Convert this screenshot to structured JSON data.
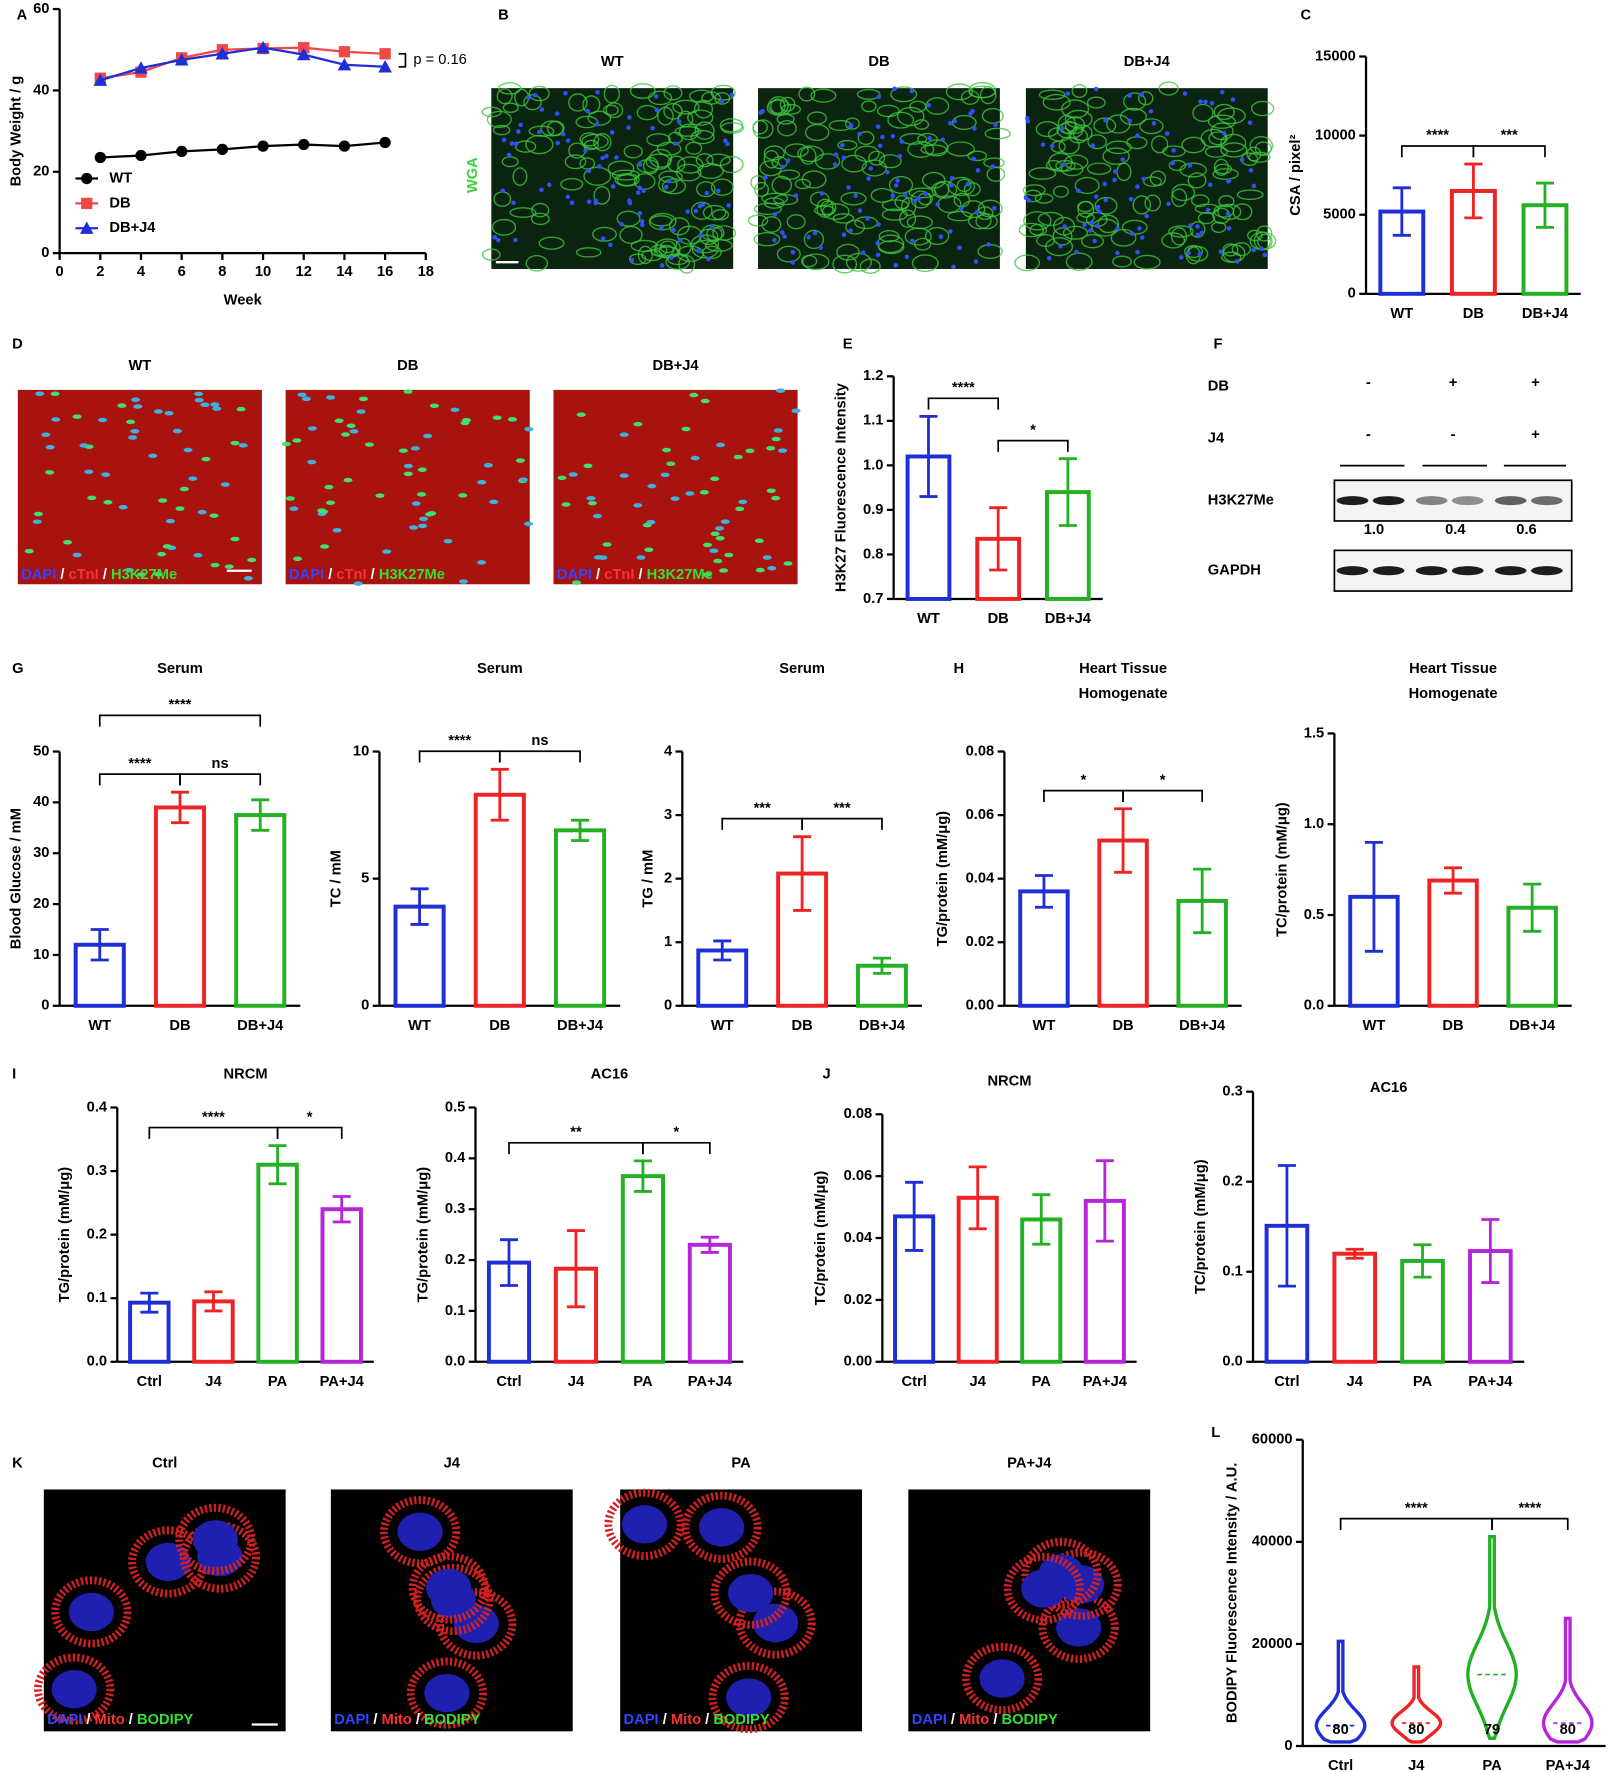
{
  "panel_labels": [
    "A",
    "B",
    "C",
    "D",
    "E",
    "F",
    "G",
    "H",
    "I",
    "J",
    "K",
    "L"
  ],
  "image_panels": {
    "B": {
      "headers": [
        "WT",
        "DB",
        "DB+J4"
      ],
      "side_label": "WGA"
    },
    "D": {
      "headers": [
        "WT",
        "DB",
        "DB+J4"
      ],
      "caption": [
        {
          "text": "DAPI",
          "color": "#3344ff"
        },
        {
          "text": " / ",
          "color": "#ffffff"
        },
        {
          "text": "cTnI",
          "color": "#ff3030"
        },
        {
          "text": " / ",
          "color": "#ffffff"
        },
        {
          "text": "H3K27Me",
          "color": "#33e033"
        }
      ]
    },
    "K": {
      "headers": [
        "Ctrl",
        "J4",
        "PA",
        "PA+J4"
      ],
      "caption": [
        {
          "text": "DAPI",
          "color": "#3344ff"
        },
        {
          "text": " / ",
          "color": "#ffffff"
        },
        {
          "text": "Mito",
          "color": "#ff3030"
        },
        {
          "text": " / ",
          "color": "#ffffff"
        },
        {
          "text": "BODIPY",
          "color": "#33e033"
        }
      ]
    }
  },
  "blot": {
    "rows": [
      {
        "label": "DB",
        "marks": [
          "-",
          "+",
          "+"
        ]
      },
      {
        "label": "J4",
        "marks": [
          "-",
          "-",
          "+"
        ]
      }
    ],
    "bands": [
      {
        "label": "H3K27Me",
        "quant": [
          "1.0",
          "0.4",
          "0.6"
        ]
      },
      {
        "label": "GAPDH"
      }
    ]
  },
  "chart_data": [
    {
      "type": "line",
      "ylabel": "Body Weight / g",
      "xlabel": "Week",
      "x": [
        2,
        4,
        6,
        8,
        10,
        12,
        14,
        16
      ],
      "xlim": [
        0,
        18
      ],
      "xticks": [
        0,
        2,
        4,
        6,
        8,
        10,
        12,
        14,
        16,
        18
      ],
      "ylim": [
        0,
        60
      ],
      "yticks": [
        0,
        20,
        40,
        60
      ],
      "legend": "lower left",
      "annotation": "p = 0.16",
      "series": [
        {
          "name": "WT",
          "color": "#000000",
          "marker": "circle",
          "values": [
            23.5,
            24,
            25,
            25.5,
            26.3,
            26.7,
            26.3,
            27.2
          ]
        },
        {
          "name": "DB",
          "color": "#f04848",
          "marker": "square",
          "values": [
            43,
            44.5,
            48,
            50,
            50.3,
            50.5,
            49.5,
            49
          ]
        },
        {
          "name": "DB+J4",
          "color": "#1f2fd6",
          "marker": "triangle",
          "values": [
            42.5,
            45.5,
            47.5,
            49,
            50.5,
            48.8,
            46.3,
            45.8
          ]
        }
      ]
    },
    {
      "type": "bar",
      "ylabel": "CSA / pixel²",
      "categories": [
        "WT",
        "DB",
        "DB+J4"
      ],
      "colors": [
        "#1f2fd6",
        "#ef2323",
        "#23b023"
      ],
      "values": [
        5200,
        6500,
        5600
      ],
      "errors": [
        1500,
        1700,
        1400
      ],
      "ylim": [
        0,
        15000
      ],
      "yticks": [
        0,
        5000,
        10000,
        15000
      ],
      "brackets": [
        {
          "from": 0,
          "to": 1,
          "label": "****"
        },
        {
          "from": 1,
          "to": 2,
          "label": "***"
        }
      ]
    },
    {
      "type": "bar",
      "ylabel": "H3K27 Fluorescence Intensity",
      "categories": [
        "WT",
        "DB",
        "DB+J4"
      ],
      "colors": [
        "#1f2fd6",
        "#ef2323",
        "#23b023"
      ],
      "values": [
        1.02,
        0.835,
        0.94
      ],
      "errors": [
        0.09,
        0.07,
        0.075
      ],
      "ylim": [
        0.7,
        1.2
      ],
      "yticks": [
        0.7,
        0.8,
        0.9,
        {
          "value": 1,
          "label": "1.0"
        },
        1.1,
        1.2
      ],
      "brackets": [
        {
          "from": 0,
          "to": 1,
          "label": "****"
        },
        {
          "from": 1,
          "to": 2,
          "label": "*"
        }
      ]
    },
    {
      "type": "bar",
      "title": "Serum",
      "ylabel": "Blood Glucose / mM",
      "categories": [
        "WT",
        "DB",
        "DB+J4"
      ],
      "colors": [
        "#1f2fd6",
        "#ef2323",
        "#23b023"
      ],
      "values": [
        12,
        39,
        37.5
      ],
      "errors": [
        3,
        3,
        3
      ],
      "ylim": [
        0,
        50
      ],
      "yticks": [
        0,
        10,
        20,
        30,
        40,
        50
      ],
      "brackets": [
        {
          "from": 0,
          "to": 1,
          "label": "****"
        },
        {
          "from": 1,
          "to": 2,
          "label": "ns"
        },
        {
          "from": 0,
          "to": 2,
          "label": "****"
        }
      ]
    },
    {
      "type": "bar",
      "title": "Serum",
      "ylabel": "TC / mM",
      "categories": [
        "WT",
        "DB",
        "DB+J4"
      ],
      "colors": [
        "#1f2fd6",
        "#ef2323",
        "#23b023"
      ],
      "values": [
        3.9,
        8.3,
        6.9
      ],
      "errors": [
        0.7,
        1,
        0.4
      ],
      "ylim": [
        0,
        10
      ],
      "yticks": [
        0,
        5,
        10
      ],
      "brackets": [
        {
          "from": 0,
          "to": 1,
          "label": "****"
        },
        {
          "from": 1,
          "to": 2,
          "label": "ns"
        }
      ]
    },
    {
      "type": "bar",
      "title": "Serum",
      "ylabel": "TG / mM",
      "categories": [
        "WT",
        "DB",
        "DB+J4"
      ],
      "colors": [
        "#1f2fd6",
        "#ef2323",
        "#23b023"
      ],
      "values": [
        0.87,
        2.08,
        0.63
      ],
      "errors": [
        0.15,
        0.58,
        0.12
      ],
      "ylim": [
        0,
        4
      ],
      "yticks": [
        0,
        1,
        2,
        3,
        4
      ],
      "brackets": [
        {
          "from": 0,
          "to": 1,
          "label": "***"
        },
        {
          "from": 1,
          "to": 2,
          "label": "***"
        }
      ]
    },
    {
      "type": "bar",
      "title": [
        "Heart Tissue",
        "Homogenate"
      ],
      "ylabel": "TG/protein  (mM/μg)",
      "categories": [
        "WT",
        "DB",
        "DB+J4"
      ],
      "colors": [
        "#1f2fd6",
        "#ef2323",
        "#23b023"
      ],
      "values": [
        0.036,
        0.052,
        0.033
      ],
      "errors": [
        0.005,
        0.01,
        0.01
      ],
      "ylim": [
        0,
        0.08
      ],
      "yticks": [
        {
          "value": 0,
          "label": "0.00"
        },
        {
          "value": 0.02,
          "label": "0.02"
        },
        {
          "value": 0.04,
          "label": "0.04"
        },
        {
          "value": 0.06,
          "label": "0.06"
        },
        {
          "value": 0.08,
          "label": "0.08"
        }
      ],
      "brackets": [
        {
          "from": 0,
          "to": 1,
          "label": "*"
        },
        {
          "from": 1,
          "to": 2,
          "label": "*"
        }
      ]
    },
    {
      "type": "bar",
      "title": [
        "Heart Tissue",
        "Homogenate"
      ],
      "ylabel": "TC/protein  (mM/μg)",
      "categories": [
        "WT",
        "DB",
        "DB+J4"
      ],
      "colors": [
        "#1f2fd6",
        "#ef2323",
        "#23b023"
      ],
      "values": [
        0.6,
        0.69,
        0.54
      ],
      "errors": [
        0.3,
        0.07,
        0.13
      ],
      "ylim": [
        0,
        1.5
      ],
      "yticks": [
        {
          "value": 0,
          "label": "0.0"
        },
        0.5,
        {
          "value": 1,
          "label": "1.0"
        },
        1.5
      ]
    },
    {
      "type": "bar",
      "title": "NRCM",
      "ylabel": "TG/protein  (mM/μg)",
      "categories": [
        "Ctrl",
        "J4",
        "PA",
        "PA+J4"
      ],
      "colors": [
        "#1f2fd6",
        "#ef2323",
        "#23b023",
        "#b625d9"
      ],
      "values": [
        0.093,
        0.095,
        0.31,
        0.24
      ],
      "errors": [
        0.015,
        0.015,
        0.03,
        0.02
      ],
      "ylim": [
        0,
        0.4
      ],
      "yticks": [
        {
          "value": 0,
          "label": "0.0"
        },
        0.1,
        0.2,
        0.3,
        0.4
      ],
      "brackets": [
        {
          "from": 0,
          "to": 2,
          "label": "****"
        },
        {
          "from": 2,
          "to": 3,
          "label": "*"
        }
      ]
    },
    {
      "type": "bar",
      "title": "AC16",
      "ylabel": "TG/protein  (mM/μg)",
      "categories": [
        "Ctrl",
        "J4",
        "PA",
        "PA+J4"
      ],
      "colors": [
        "#1f2fd6",
        "#ef2323",
        "#23b023",
        "#b625d9"
      ],
      "values": [
        0.195,
        0.183,
        0.365,
        0.23
      ],
      "errors": [
        0.045,
        0.075,
        0.03,
        0.015
      ],
      "ylim": [
        0,
        0.5
      ],
      "yticks": [
        {
          "value": 0,
          "label": "0.0"
        },
        0.1,
        0.2,
        0.3,
        0.4,
        0.5
      ],
      "brackets": [
        {
          "from": 0,
          "to": 2,
          "label": "**"
        },
        {
          "from": 2,
          "to": 3,
          "label": "*"
        }
      ]
    },
    {
      "type": "bar",
      "title": "NRCM",
      "ylabel": "TC/protein  (mM/μg)",
      "categories": [
        "Ctrl",
        "J4",
        "PA",
        "PA+J4"
      ],
      "colors": [
        "#1f2fd6",
        "#ef2323",
        "#23b023",
        "#b625d9"
      ],
      "values": [
        0.047,
        0.053,
        0.046,
        0.052
      ],
      "errors": [
        0.011,
        0.01,
        0.008,
        0.013
      ],
      "ylim": [
        0,
        0.08
      ],
      "yticks": [
        {
          "value": 0,
          "label": "0.00"
        },
        {
          "value": 0.02,
          "label": "0.02"
        },
        {
          "value": 0.04,
          "label": "0.04"
        },
        {
          "value": 0.06,
          "label": "0.06"
        },
        {
          "value": 0.08,
          "label": "0.08"
        }
      ]
    },
    {
      "type": "bar",
      "title": "AC16",
      "ylabel": "TC/protein  (mM/μg)",
      "categories": [
        "Ctrl",
        "J4",
        "PA",
        "PA+J4"
      ],
      "colors": [
        "#1f2fd6",
        "#ef2323",
        "#23b023",
        "#b625d9"
      ],
      "values": [
        0.151,
        0.12,
        0.112,
        0.123
      ],
      "errors": [
        0.067,
        0.005,
        0.018,
        0.035
      ],
      "ylim": [
        0,
        0.3
      ],
      "yticks": [
        {
          "value": 0,
          "label": "0.0"
        },
        0.1,
        0.2,
        0.3
      ]
    },
    {
      "type": "violin",
      "ylabel": "BODIPY Fluorescence Intensity / A.U.",
      "categories": [
        "Ctrl",
        "J4",
        "PA",
        "PA+J4"
      ],
      "colors": [
        "#1f2fd6",
        "#ef2323",
        "#23b023",
        "#b625d9"
      ],
      "values": [
        4000,
        4500,
        14000,
        4500
      ],
      "max": [
        20500,
        15500,
        41000,
        25000
      ],
      "min": [
        800,
        800,
        1500,
        800
      ],
      "n": [
        80,
        80,
        79,
        80
      ],
      "ylim": [
        0,
        60000
      ],
      "yticks": [
        0,
        20000,
        40000,
        60000
      ],
      "brackets": [
        {
          "from": 0,
          "to": 2,
          "label": "****"
        },
        {
          "from": 2,
          "to": 3,
          "label": "****"
        }
      ]
    }
  ]
}
